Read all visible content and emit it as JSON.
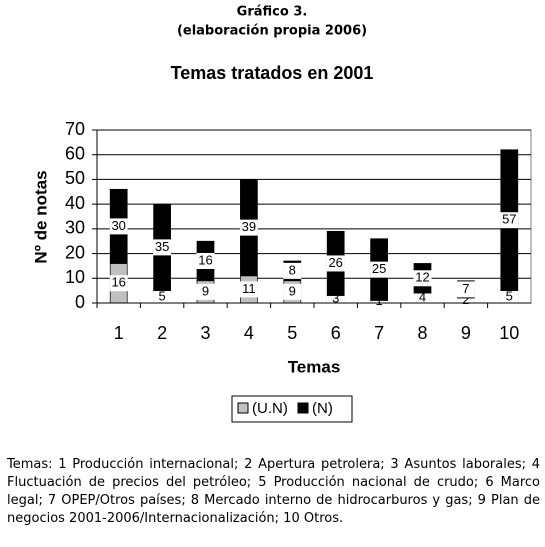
{
  "chart_data": {
    "type": "stacked_bar",
    "figure_label": "Gráfico 3.",
    "subtitle": "(elaboración propia 2006)",
    "title": "Temas tratados en 2001",
    "y_label": "Nº de notas",
    "x_label": "Temas",
    "categories": [
      "1",
      "2",
      "3",
      "4",
      "5",
      "6",
      "7",
      "8",
      "9",
      "10"
    ],
    "series": [
      {
        "name": "(U.N)",
        "color": "#c0c0c0",
        "values": [
          16,
          5,
          9,
          11,
          9,
          3,
          1,
          4,
          2,
          5
        ]
      },
      {
        "name": "(N)",
        "color": "#000000",
        "values": [
          30,
          35,
          16,
          39,
          8,
          26,
          25,
          12,
          7,
          57
        ]
      }
    ],
    "ylim": [
      0,
      70
    ],
    "yticks": [
      0,
      10,
      20,
      30,
      40,
      50,
      60,
      70
    ],
    "grid": true,
    "note": "Temas: 1 Producción internacional; 2 Apertura petrolera; 3 Asuntos laborales; 4 Fluctuación de precios del petróleo; 5 Producción nacional de crudo; 6 Marco legal; 7 OPEP/Otros países; 8 Mercado interno de hidrocarburos y gas; 9 Plan de negocios 2001-2006/Internacionalización; 10 Otros."
  }
}
